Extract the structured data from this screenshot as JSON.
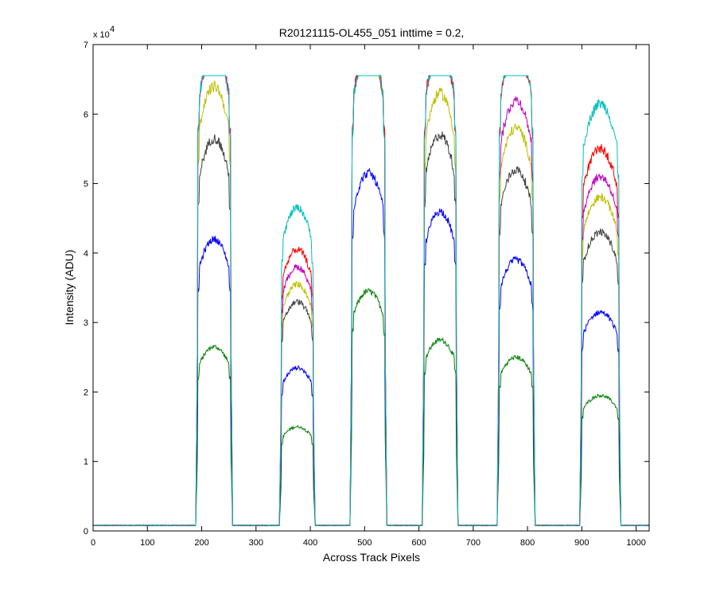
{
  "chart_data": {
    "type": "line",
    "title": "R20121115-OL455_051 inttime = 0.2,",
    "xlabel": "Across Track Pixels",
    "ylabel": "Intensity (ADU)",
    "y_multiplier_label": "x 10",
    "y_multiplier_exponent": "4",
    "xlim": [
      0,
      1024
    ],
    "ylim": [
      0,
      70000
    ],
    "x_ticks": [
      0,
      100,
      200,
      300,
      400,
      500,
      600,
      700,
      800,
      900,
      1000
    ],
    "x_tick_labels": [
      "0",
      "100",
      "200",
      "300",
      "400",
      "500",
      "600",
      "700",
      "800",
      "900",
      "1000"
    ],
    "y_ticks": [
      0,
      10000,
      20000,
      30000,
      40000,
      50000,
      60000,
      70000
    ],
    "y_tick_labels": [
      "0",
      "1",
      "2",
      "3",
      "4",
      "5",
      "6",
      "7"
    ],
    "grid": false,
    "legend": "none",
    "baseline": 800,
    "saturation": 65535,
    "bands": [
      {
        "x_start": 193,
        "x_end": 253
      },
      {
        "x_start": 347,
        "x_end": 405
      },
      {
        "x_start": 477,
        "x_end": 537
      },
      {
        "x_start": 610,
        "x_end": 668
      },
      {
        "x_start": 748,
        "x_end": 810
      },
      {
        "x_start": 900,
        "x_end": 968
      }
    ],
    "series": [
      {
        "color": "#007f00",
        "peaks": [
          26500,
          15000,
          34500,
          27500,
          25000,
          19500
        ]
      },
      {
        "color": "#0000ff",
        "peaks": [
          42000,
          23500,
          51500,
          46000,
          39000,
          31500
        ]
      },
      {
        "color": "#404040",
        "peaks": [
          56500,
          33000,
          65535,
          57000,
          52000,
          43000
        ]
      },
      {
        "color": "#bfbf00",
        "peaks": [
          64000,
          35500,
          65535,
          63000,
          58000,
          48000
        ]
      },
      {
        "color": "#bf00bf",
        "peaks": [
          65535,
          38000,
          65535,
          65535,
          62000,
          51000
        ]
      },
      {
        "color": "#ff0000",
        "peaks": [
          65535,
          40500,
          65535,
          65535,
          65535,
          55000
        ]
      },
      {
        "color": "#00bfbf",
        "peaks": [
          65535,
          46500,
          65535,
          65535,
          65535,
          61500
        ]
      }
    ]
  }
}
